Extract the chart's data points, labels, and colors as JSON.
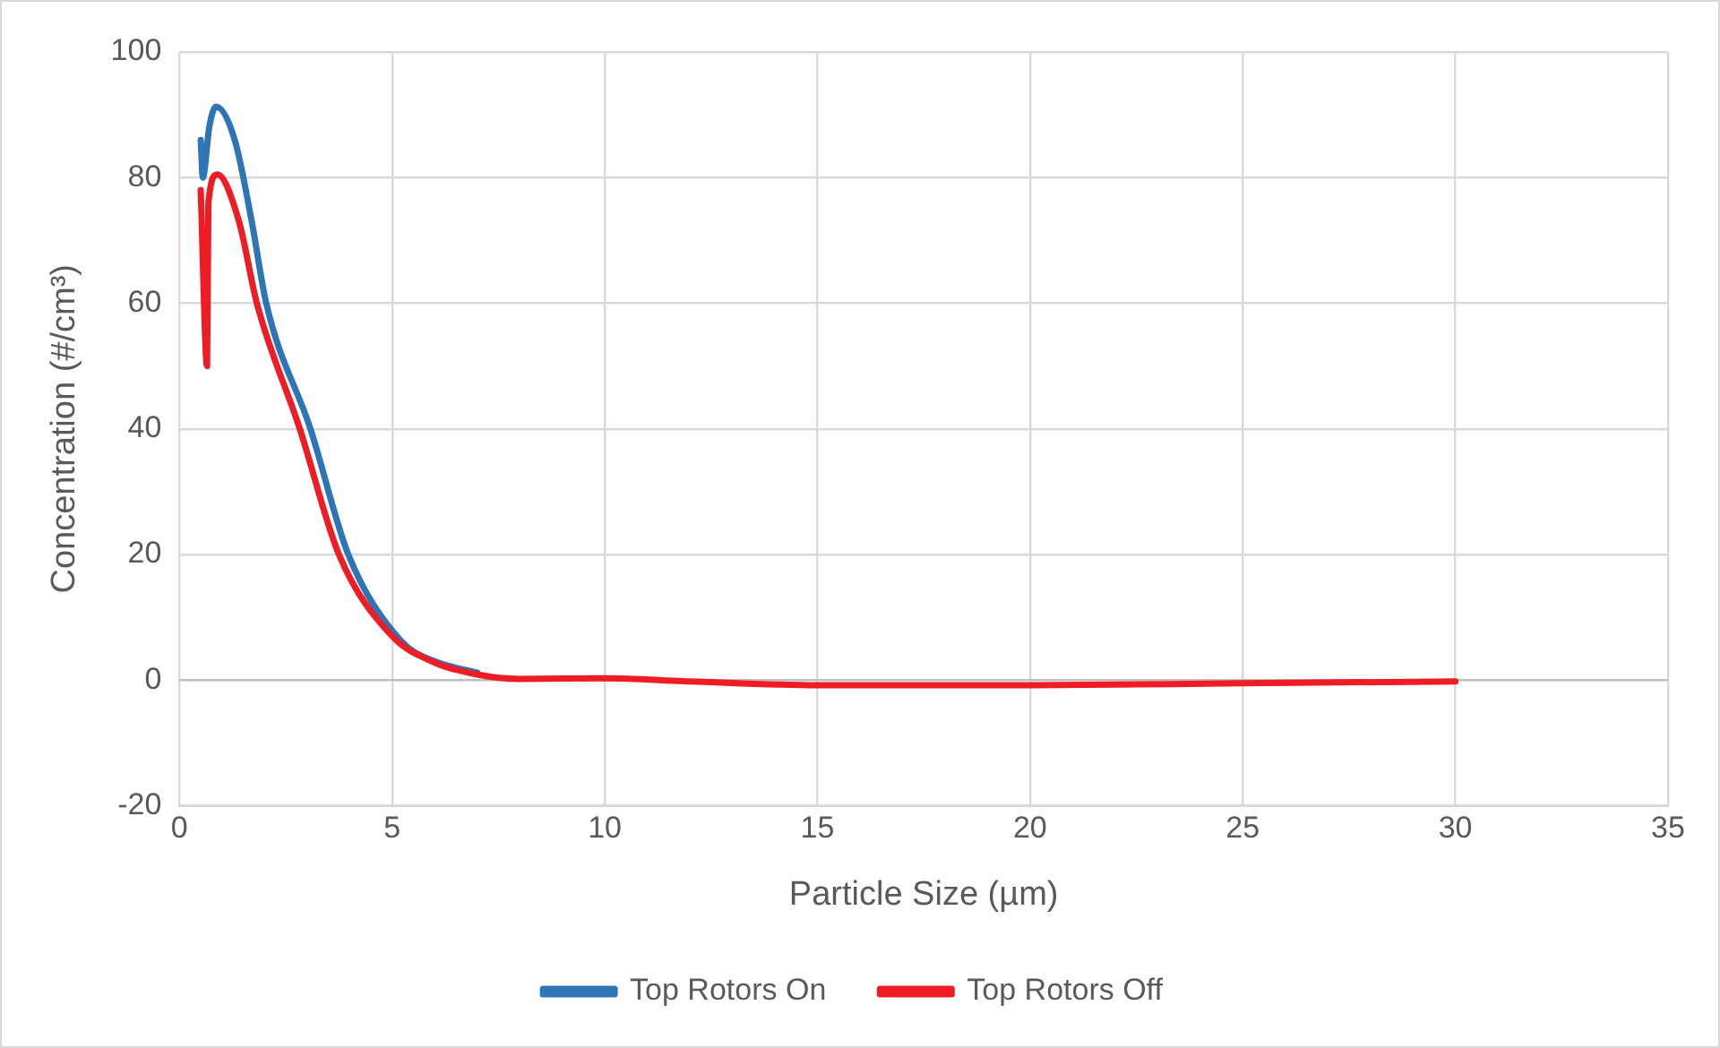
{
  "chart_data": {
    "type": "line",
    "xlabel": "Particle Size (µm)",
    "ylabel": "Concentration (#/cm³)",
    "xlim": [
      0,
      35
    ],
    "xticks": [
      0,
      5,
      10,
      15,
      20,
      25,
      30,
      35
    ],
    "ylim": [
      -20,
      100
    ],
    "yticks": [
      -20,
      0,
      20,
      40,
      60,
      80,
      100
    ],
    "grid": true,
    "legend": "bottom",
    "marker": "none",
    "line_style": "solid",
    "series": [
      {
        "name": "Top Rotors On",
        "color": "#2e75b6",
        "x": [
          0.5,
          0.55,
          0.7,
          0.86,
          1.3,
          1.7,
          2.04,
          3.08,
          3.97,
          5.2,
          6,
          7
        ],
        "values": [
          86,
          80,
          88,
          91.3,
          86,
          73,
          60,
          40,
          20,
          6.3,
          3,
          1.2
        ]
      },
      {
        "name": "Top Rotors Off",
        "color": "#ee1c25",
        "x": [
          0.5,
          0.65,
          0.68,
          0.89,
          1.4,
          1.82,
          2.83,
          3.75,
          5,
          6,
          7,
          8,
          10,
          12,
          15,
          20,
          25,
          30
        ],
        "values": [
          78,
          50,
          76,
          80.5,
          73,
          60,
          40,
          20,
          7,
          2.8,
          0.9,
          0.2,
          0.3,
          -0.2,
          -0.8,
          -0.8,
          -0.5,
          -0.2
        ]
      }
    ]
  }
}
